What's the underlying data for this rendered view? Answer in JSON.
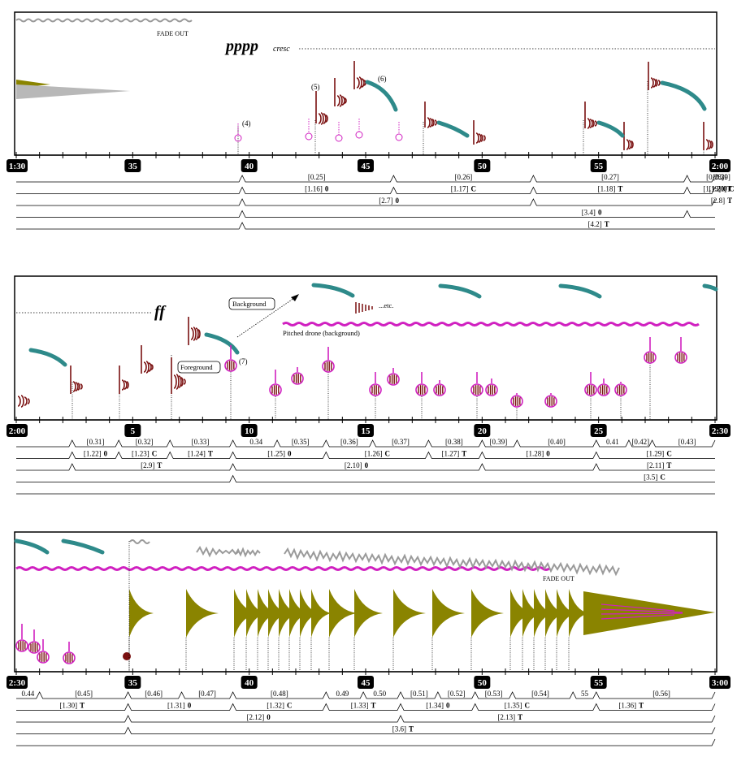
{
  "colors": {
    "maroon": "#7a1010",
    "teal": "#2e8a8a",
    "magenta": "#d020c0",
    "olive": "#8a8400",
    "gray": "#9a9a9a",
    "black": "#000000"
  },
  "systems": [
    {
      "id": "system-1",
      "time_labels": {
        "start": "1:30",
        "end": "2:00",
        "marks": [
          {
            "t": 5,
            "label": "35"
          },
          {
            "t": 10,
            "label": "40"
          },
          {
            "t": 15,
            "label": "45"
          },
          {
            "t": 20,
            "label": "50"
          },
          {
            "t": 25,
            "label": "55"
          }
        ]
      },
      "annotations": [
        {
          "key": "fade_out",
          "text": "FADE OUT"
        },
        {
          "key": "pppp",
          "text": "pppp"
        },
        {
          "key": "cresc",
          "text": "cresc"
        },
        {
          "key": "n4",
          "text": "(4)"
        },
        {
          "key": "n5",
          "text": "(5)"
        },
        {
          "key": "n6",
          "text": "(6)"
        }
      ],
      "levels": [
        {
          "marks": [
            9.7,
            16.2,
            22.2,
            28.8,
            31.2,
            35.0
          ],
          "labels": [
            {
              "t": 12.9,
              "text": "[0.25]"
            },
            {
              "t": 19.2,
              "text": "[0.26]"
            },
            {
              "t": 25.5,
              "text": "[0.27]"
            },
            {
              "t": 30.0,
              "text": "[0.28]"
            },
            {
              "t": 33.1,
              "text": "[0.29]"
            },
            {
              "t": 35.3,
              "text": "0.30"
            }
          ]
        },
        {
          "marks": [
            9.7,
            16.2,
            22.2,
            28.8,
            31.2,
            35.0
          ],
          "labels": [
            {
              "t": 12.9,
              "text": "[1.16]",
              "mark": "0"
            },
            {
              "t": 19.2,
              "text": "[1.17]",
              "mark": "C"
            },
            {
              "t": 25.5,
              "text": "[1.18]",
              "mark": "T"
            },
            {
              "t": 30.0,
              "text": "[1.19]",
              "mark": "0"
            },
            {
              "t": 33.1,
              "text": "[1.20]",
              "mark": "C"
            },
            {
              "t": 35.3,
              "text": "1.21",
              "mark": "T"
            }
          ]
        },
        {
          "marks": [
            9.7,
            22.2,
            31.2
          ],
          "labels": [
            {
              "t": 16.0,
              "text": "[2.7]",
              "mark": "0"
            },
            {
              "t": 33.1,
              "text": "[2.8]",
              "mark": "T"
            }
          ]
        },
        {
          "marks": [
            9.7,
            28.8
          ],
          "labels": [
            {
              "t": 24.7,
              "text": "[3.4]",
              "mark": "0"
            }
          ]
        },
        {
          "marks": [
            9.7
          ],
          "labels": [
            {
              "t": 25.0,
              "text": "[4.2]",
              "mark": "T"
            }
          ]
        }
      ]
    },
    {
      "id": "system-2",
      "time_labels": {
        "start": "2:00",
        "end": "2:30",
        "marks": [
          {
            "t": 5,
            "label": "5"
          },
          {
            "t": 10,
            "label": "10"
          },
          {
            "t": 15,
            "label": "15"
          },
          {
            "t": 20,
            "label": "20"
          },
          {
            "t": 25,
            "label": "25"
          }
        ]
      },
      "annotations": [
        {
          "key": "ff",
          "text": "ff"
        },
        {
          "key": "background",
          "text": "Background"
        },
        {
          "key": "etc",
          "text": "...etc."
        },
        {
          "key": "foreground",
          "text": "Foreground"
        },
        {
          "key": "n7",
          "text": "(7)"
        },
        {
          "key": "drone",
          "text": "Pitched drone (background)"
        }
      ],
      "levels": [
        {
          "marks": [
            2.4,
            4.4,
            6.6,
            9.3,
            11.2,
            13.3,
            15.3,
            17.7,
            20.0,
            21.5,
            24.9,
            26.3,
            27.3,
            35.0
          ],
          "labels": [
            {
              "t": 3.4,
              "text": "[0.31]"
            },
            {
              "t": 5.5,
              "text": "[0.32]"
            },
            {
              "t": 7.9,
              "text": "[0.33]"
            },
            {
              "t": 10.3,
              "text": "0.34"
            },
            {
              "t": 12.2,
              "text": "[0.35]"
            },
            {
              "t": 14.3,
              "text": "[0.36]"
            },
            {
              "t": 16.5,
              "text": "[0.37]"
            },
            {
              "t": 18.8,
              "text": "[0.38]"
            },
            {
              "t": 20.7,
              "text": "[0.39]"
            },
            {
              "t": 23.2,
              "text": "[0.40]"
            },
            {
              "t": 25.6,
              "text": "0.41"
            },
            {
              "t": 26.8,
              "text": "[0.42]"
            },
            {
              "t": 28.8,
              "text": "[0.43]"
            }
          ]
        },
        {
          "marks": [
            2.4,
            4.4,
            6.6,
            9.3,
            13.3,
            17.7,
            20.0,
            24.9
          ],
          "labels": [
            {
              "t": 3.4,
              "text": "[1.22]",
              "mark": "0"
            },
            {
              "t": 5.5,
              "text": "[1.23]",
              "mark": "C"
            },
            {
              "t": 7.9,
              "text": "[1.24]",
              "mark": "T"
            },
            {
              "t": 11.3,
              "text": "[1.25]",
              "mark": "0"
            },
            {
              "t": 15.5,
              "text": "[1.26]",
              "mark": "C"
            },
            {
              "t": 18.8,
              "text": "[1.27]",
              "mark": "T"
            },
            {
              "t": 22.4,
              "text": "[1.28]",
              "mark": "0"
            },
            {
              "t": 27.6,
              "text": "[1.29]",
              "mark": "C"
            }
          ]
        },
        {
          "marks": [
            2.4,
            9.3,
            20.0,
            24.9
          ],
          "labels": [
            {
              "t": 5.8,
              "text": "[2.9]",
              "mark": "T"
            },
            {
              "t": 14.6,
              "text": "[2.10]",
              "mark": "0"
            },
            {
              "t": 27.6,
              "text": "[2.11]",
              "mark": "T"
            }
          ]
        },
        {
          "marks": [
            9.3
          ],
          "labels": [
            {
              "t": 27.4,
              "text": "[3.5]",
              "mark": "C"
            }
          ]
        },
        {
          "marks": [],
          "labels": []
        }
      ]
    },
    {
      "id": "system-3",
      "time_labels": {
        "start": "2:30",
        "end": "3:00",
        "marks": [
          {
            "t": 5,
            "label": "35"
          },
          {
            "t": 10,
            "label": "40"
          },
          {
            "t": 15,
            "label": "45"
          },
          {
            "t": 20,
            "label": "50"
          },
          {
            "t": 25,
            "label": "55"
          }
        ]
      },
      "annotations": [
        {
          "key": "fade_out",
          "text": "FADE OUT"
        }
      ],
      "levels": [
        {
          "marks": [
            1.0,
            4.8,
            7.1,
            9.3,
            13.3,
            14.9,
            16.5,
            18.1,
            19.7,
            21.3,
            23.9,
            24.9,
            35.0
          ],
          "labels": [
            {
              "t": 0.5,
              "text": "0.44"
            },
            {
              "t": 2.9,
              "text": "[0.45]"
            },
            {
              "t": 5.9,
              "text": "[0.46]"
            },
            {
              "t": 8.2,
              "text": "[0.47]"
            },
            {
              "t": 11.3,
              "text": "[0.48]"
            },
            {
              "t": 14.0,
              "text": "0.49"
            },
            {
              "t": 15.6,
              "text": "0.50"
            },
            {
              "t": 17.3,
              "text": "[0.51]"
            },
            {
              "t": 18.9,
              "text": "[0.52]"
            },
            {
              "t": 20.5,
              "text": "[0.53]"
            },
            {
              "t": 22.5,
              "text": "[0.54]"
            },
            {
              "t": 24.4,
              "text": "55"
            },
            {
              "t": 27.7,
              "text": "[0.56]"
            }
          ]
        },
        {
          "marks": [
            4.8,
            9.3,
            13.3,
            16.5,
            19.7,
            24.9,
            35.0
          ],
          "labels": [
            {
              "t": 2.4,
              "text": "[1.30]",
              "mark": "T"
            },
            {
              "t": 7.0,
              "text": "[1.31]",
              "mark": "0"
            },
            {
              "t": 11.3,
              "text": "[1.32]",
              "mark": "C"
            },
            {
              "t": 14.9,
              "text": "[1.33]",
              "mark": "T"
            },
            {
              "t": 18.1,
              "text": "[1.34]",
              "mark": "0"
            },
            {
              "t": 21.5,
              "text": "[1.35]",
              "mark": "C"
            },
            {
              "t": 26.4,
              "text": "[1.36]",
              "mark": "T"
            }
          ]
        },
        {
          "marks": [
            4.8,
            16.5,
            35.0
          ],
          "labels": [
            {
              "t": 10.4,
              "text": "[2.12]",
              "mark": "0"
            },
            {
              "t": 21.2,
              "text": "[2.13]",
              "mark": "T"
            }
          ]
        },
        {
          "marks": [
            4.8,
            35.0
          ],
          "labels": [
            {
              "t": 16.6,
              "text": "[3.6]",
              "mark": "T"
            }
          ]
        },
        {
          "marks": [
            35.0
          ],
          "labels": []
        }
      ]
    }
  ]
}
